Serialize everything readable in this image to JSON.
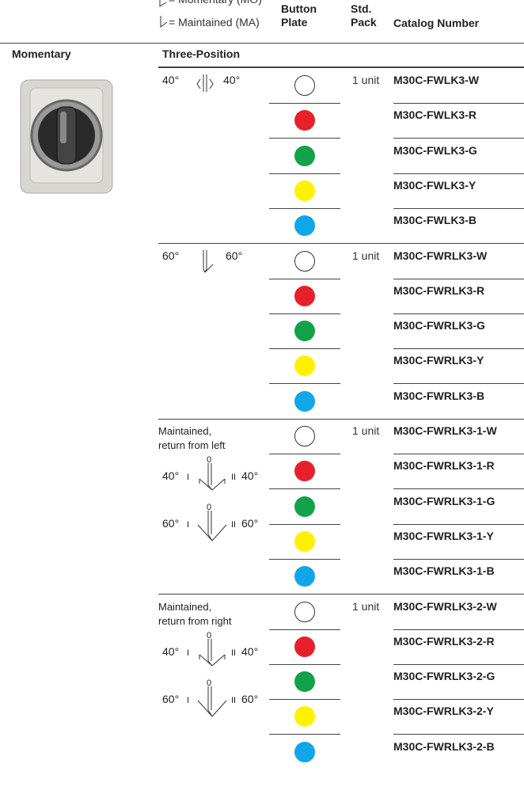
{
  "legend": {
    "momentary": "= Momentary (MO)",
    "maintained": "= Maintained (MA)"
  },
  "columns": {
    "button_plate": "Button Plate",
    "std_pack": "Std. Pack",
    "catalog_number": "Catalog Number"
  },
  "side_label": "Momentary",
  "section_title": "Three-Position",
  "groups": [
    {
      "angles": [
        "40°",
        "40°"
      ],
      "std_pack": "1 unit",
      "rows": [
        {
          "color": "#ffffff",
          "catalog": "M30C-FWLK3-W"
        },
        {
          "color": "#e8202a",
          "catalog": "M30C-FWLK3-R"
        },
        {
          "color": "#13a24a",
          "catalog": "M30C-FWLK3-G"
        },
        {
          "color": "#fff200",
          "catalog": "M30C-FWLK3-Y"
        },
        {
          "color": "#11a6ea",
          "catalog": "M30C-FWLK3-B"
        }
      ]
    },
    {
      "angles": [
        "60°",
        "60°"
      ],
      "std_pack": "1 unit",
      "rows": [
        {
          "color": "#ffffff",
          "catalog": "M30C-FWRLK3-W"
        },
        {
          "color": "#e8202a",
          "catalog": "M30C-FWRLK3-R"
        },
        {
          "color": "#13a24a",
          "catalog": "M30C-FWRLK3-G"
        },
        {
          "color": "#fff200",
          "catalog": "M30C-FWRLK3-Y"
        },
        {
          "color": "#11a6ea",
          "catalog": "M30C-FWRLK3-B"
        }
      ]
    },
    {
      "description": [
        "Maintained,",
        "return from left"
      ],
      "diagrams": [
        {
          "left": "40°",
          "left_mark": "I",
          "top": "0",
          "right_mark": "II",
          "right": "40°"
        },
        {
          "left": "60°",
          "left_mark": "I",
          "top": "0",
          "right_mark": "II",
          "right": "60°"
        }
      ],
      "std_pack": "1 unit",
      "rows": [
        {
          "color": "#ffffff",
          "catalog": "M30C-FWRLK3-1-W"
        },
        {
          "color": "#e8202a",
          "catalog": "M30C-FWRLK3-1-R"
        },
        {
          "color": "#13a24a",
          "catalog": "M30C-FWRLK3-1-G"
        },
        {
          "color": "#fff200",
          "catalog": "M30C-FWRLK3-1-Y"
        },
        {
          "color": "#11a6ea",
          "catalog": "M30C-FWRLK3-1-B"
        }
      ]
    },
    {
      "description": [
        "Maintained,",
        "return from right"
      ],
      "diagrams": [
        {
          "left": "40°",
          "left_mark": "I",
          "top": "0",
          "right_mark": "II",
          "right": "40°"
        },
        {
          "left": "60°",
          "left_mark": "I",
          "top": "0",
          "right_mark": "II",
          "right": "60°"
        }
      ],
      "std_pack": "1 unit",
      "rows": [
        {
          "color": "#ffffff",
          "catalog": "M30C-FWRLK3-2-W"
        },
        {
          "color": "#e8202a",
          "catalog": "M30C-FWRLK3-2-R"
        },
        {
          "color": "#13a24a",
          "catalog": "M30C-FWRLK3-2-G"
        },
        {
          "color": "#fff200",
          "catalog": "M30C-FWRLK3-2-Y"
        },
        {
          "color": "#11a6ea",
          "catalog": "M30C-FWRLK3-2-B"
        }
      ]
    }
  ]
}
